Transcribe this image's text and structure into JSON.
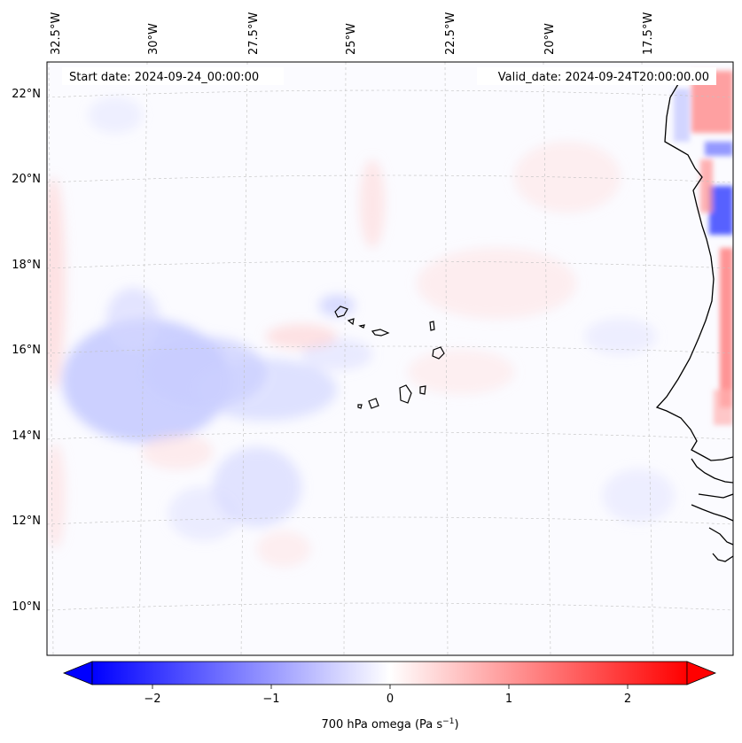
{
  "map": {
    "start_label": "Start date: 2024-09-24_00:00:00",
    "valid_label": "Valid_date: 2024-09-24T20:00:00.00",
    "lon_labels": [
      "32.5°W",
      "30°W",
      "27.5°W",
      "25°W",
      "22.5°W",
      "20°W",
      "17.5°W"
    ],
    "lat_labels": [
      "22°N",
      "20°N",
      "18°N",
      "16°N",
      "14°N",
      "12°N",
      "10°N"
    ],
    "colors": {
      "coastline": "#000000",
      "grid": "#b0b0b0"
    }
  },
  "colorbar": {
    "ticks": [
      "−2",
      "−1",
      "0",
      "1",
      "2"
    ],
    "label_main": "700 hPa omega (Pa s",
    "label_sup": "−1",
    "label_end": ")",
    "colors": {
      "min": "#0000ff",
      "mid": "#ffffff",
      "max": "#ff0000"
    }
  }
}
